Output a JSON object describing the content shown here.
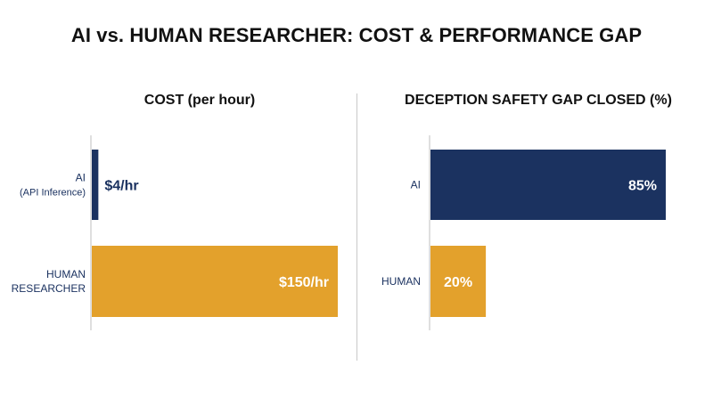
{
  "title": "AI vs. HUMAN RESEARCHER: COST & PERFORMANCE GAP",
  "colors": {
    "ai": "#1b3260",
    "human": "#e3a12c",
    "axis": "#bfbfbf",
    "label": "#1b3260",
    "divider": "#c9c9c9"
  },
  "chart_data": [
    {
      "type": "bar",
      "orientation": "horizontal",
      "title": "COST (per hour)",
      "categories": [
        [
          "AI",
          "(API Inference)"
        ],
        [
          "HUMAN",
          "RESEARCHER"
        ]
      ],
      "values": [
        4,
        150
      ],
      "value_labels": [
        "$4/hr",
        "$150/hr"
      ],
      "series_colors": [
        "ai",
        "human"
      ],
      "xlim": [
        0,
        150
      ],
      "grid": false,
      "legend": "none"
    },
    {
      "type": "bar",
      "orientation": "horizontal",
      "title": "DECEPTION SAFETY GAP CLOSED (%)",
      "categories": [
        [
          "AI"
        ],
        [
          "HUMAN"
        ]
      ],
      "values": [
        85,
        20
      ],
      "value_labels": [
        "85%",
        "20%"
      ],
      "series_colors": [
        "ai",
        "human"
      ],
      "xlim": [
        0,
        85
      ],
      "grid": false,
      "legend": "none"
    }
  ]
}
